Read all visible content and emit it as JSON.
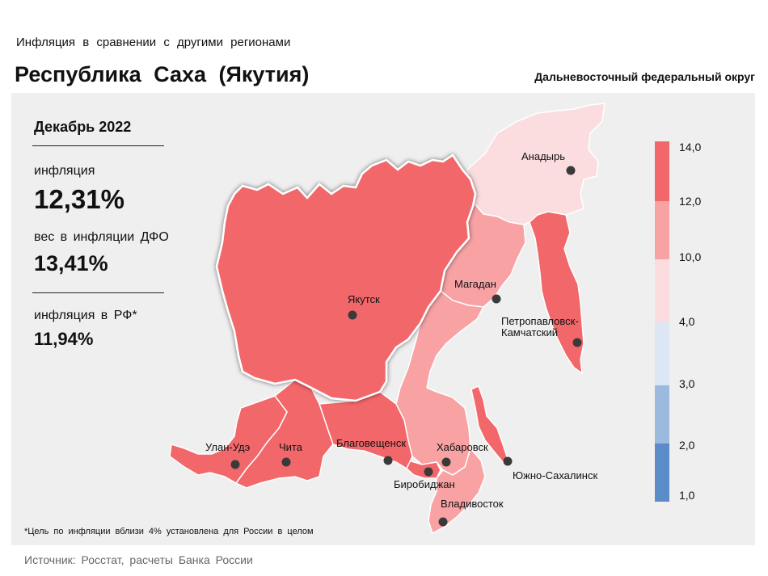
{
  "header": {
    "subtitle": "Инфляция в сравнении с другими регионами",
    "title": "Республика Саха (Якутия)",
    "district": "Дальневосточный федеральный округ"
  },
  "stats": {
    "month": "Декабрь 2022",
    "inflation_label": "инфляция",
    "inflation_value": "12,31%",
    "weight_label": "вес в инфляции ДФО",
    "weight_value": "13,41%",
    "rf_label": "инфляция в РФ*",
    "rf_value": "11,94%"
  },
  "footer": {
    "footnote": "*Цель по инфляции вблизи 4% установлена для России в целом",
    "source": "Источник: Росстат, расчеты Банка России"
  },
  "legend": {
    "ticks": [
      "14,0",
      "12,0",
      "10,0",
      "4,0",
      "3,0",
      "2,0",
      "1,0"
    ],
    "colors": [
      "#f2676a",
      "#f8a2a4",
      "#fbdde0",
      "#dce6f4",
      "#9cb9de",
      "#5b8cc9"
    ]
  },
  "cities": [
    {
      "name": "Анадырь"
    },
    {
      "name": "Магадан"
    },
    {
      "name": "Якутск"
    },
    {
      "name": "Петропавловск-"
    },
    {
      "name": "Камчатский"
    },
    {
      "name": "Улан-Удэ"
    },
    {
      "name": "Чита"
    },
    {
      "name": "Благовещенск"
    },
    {
      "name": "Хабаровск"
    },
    {
      "name": "Биробиджан"
    },
    {
      "name": "Южно-Сахалинск"
    },
    {
      "name": "Владивосток"
    }
  ],
  "regions": {
    "chukotka": {
      "color": "#fbdde0"
    },
    "magadan": {
      "color": "#f8a2a4"
    },
    "kamchatka": {
      "color": "#f2676a"
    },
    "yakutia": {
      "color": "#f2676a"
    },
    "buryatia": {
      "color": "#f2676a"
    },
    "zabaykalsky": {
      "color": "#f2676a"
    },
    "amur": {
      "color": "#f2676a"
    },
    "khabarovsk": {
      "color": "#f8a2a4"
    },
    "jewish": {
      "color": "#f2676a"
    },
    "sakhalin": {
      "color": "#f2676a"
    },
    "primorye": {
      "color": "#f8a2a4"
    }
  }
}
